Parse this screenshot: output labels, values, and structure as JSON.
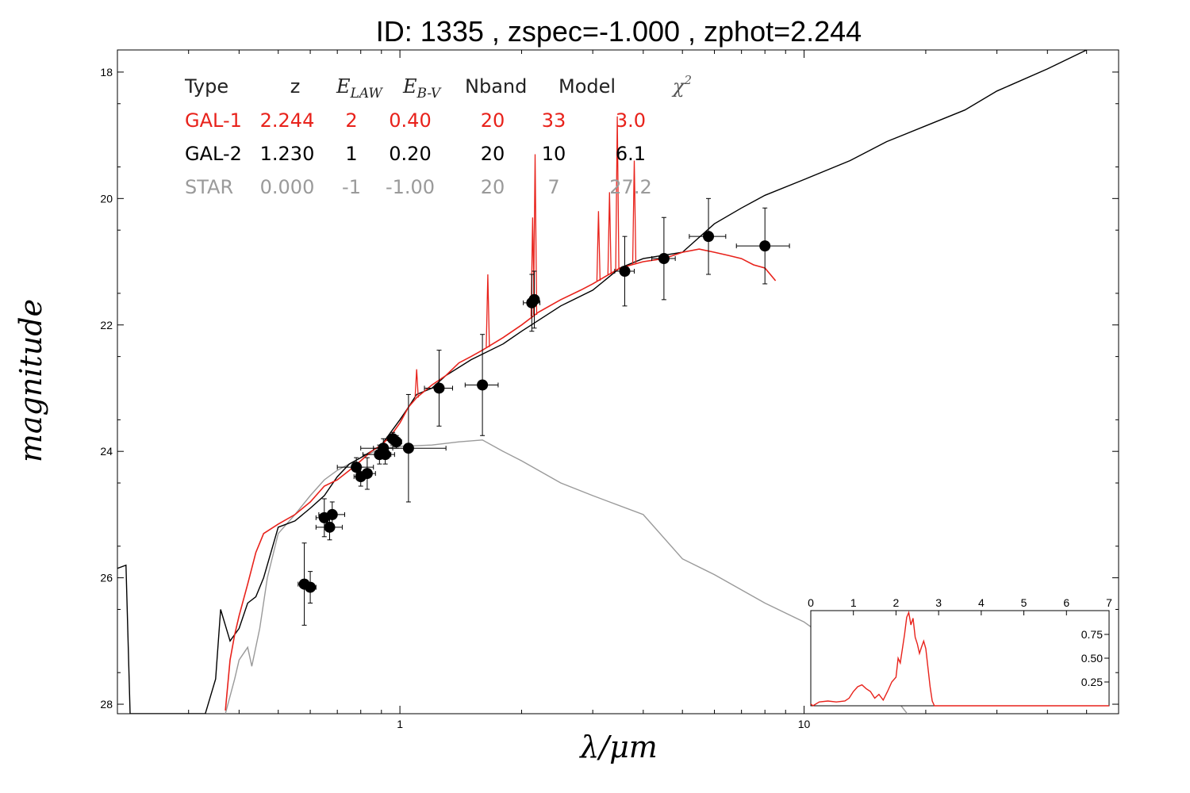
{
  "title": "ID:  1335  , zspec=-1.000 , zphot=2.244",
  "chart_data": [
    {
      "type": "line",
      "xlabel": "λ/μm",
      "ylabel": "magnitude",
      "xscale": "log",
      "xlim": [
        0.2,
        60
      ],
      "ylim": [
        28.15,
        17.65
      ],
      "yaxis_inverted": true,
      "x_ticks": [
        1,
        10
      ],
      "x_tick_labels": [
        "1",
        "10"
      ],
      "y_ticks": [
        18,
        20,
        22,
        24,
        26,
        28
      ],
      "y_tick_labels": [
        "18",
        "20",
        "22",
        "24",
        "26",
        "28"
      ],
      "grid": false,
      "legend": {
        "placement": "top-left",
        "headers": [
          "Type",
          "z",
          "E_LAW",
          "E_B-V",
          "Nband",
          "Model",
          "χ²"
        ],
        "rows": [
          {
            "cells": [
              "GAL-1",
              "2.244",
              "2",
              "0.40",
              "20",
              "33",
              "3.0"
            ],
            "color": "#e8221b"
          },
          {
            "cells": [
              "GAL-2",
              "1.230",
              "1",
              "0.20",
              "20",
              "10",
              "6.1"
            ],
            "color": "#000000"
          },
          {
            "cells": [
              "STAR",
              "0.000",
              "-1",
              "-1.00",
              "20",
              "7",
              "27.2"
            ],
            "color": "#9a9a9a"
          }
        ]
      },
      "series": [
        {
          "name": "GAL-1",
          "color": "#e8221b",
          "points": [
            [
              0.37,
              28.1
            ],
            [
              0.38,
              27.3
            ],
            [
              0.39,
              26.9
            ],
            [
              0.4,
              26.6
            ],
            [
              0.42,
              26.1
            ],
            [
              0.44,
              25.6
            ],
            [
              0.46,
              25.3
            ],
            [
              0.5,
              25.15
            ],
            [
              0.55,
              25.0
            ],
            [
              0.6,
              24.8
            ],
            [
              0.65,
              24.55
            ],
            [
              0.7,
              24.45
            ],
            [
              0.75,
              24.3
            ],
            [
              0.8,
              24.15
            ],
            [
              0.85,
              24.0
            ],
            [
              0.9,
              23.9
            ],
            [
              0.95,
              23.75
            ],
            [
              1.0,
              23.55
            ],
            [
              1.05,
              23.3
            ],
            [
              1.1,
              23.15
            ],
            [
              1.2,
              22.95
            ],
            [
              1.3,
              22.8
            ],
            [
              1.4,
              22.6
            ],
            [
              1.5,
              22.5
            ],
            [
              1.6,
              22.4
            ],
            [
              1.8,
              22.2
            ],
            [
              2.0,
              22.0
            ],
            [
              2.2,
              21.8
            ],
            [
              2.5,
              21.6
            ],
            [
              2.8,
              21.45
            ],
            [
              3.0,
              21.35
            ],
            [
              3.5,
              21.1
            ],
            [
              4.0,
              21.0
            ],
            [
              4.5,
              20.95
            ],
            [
              5.0,
              20.85
            ],
            [
              5.5,
              20.8
            ],
            [
              6.0,
              20.85
            ],
            [
              6.5,
              20.9
            ],
            [
              7.0,
              20.95
            ],
            [
              7.5,
              21.05
            ],
            [
              8.0,
              21.1
            ],
            [
              8.5,
              21.3
            ]
          ]
        },
        {
          "name": "GAL-2",
          "color": "#000000",
          "points": [
            [
              0.2,
              25.85
            ],
            [
              0.21,
              25.8
            ],
            [
              0.215,
              28.15
            ],
            [
              0.33,
              28.15
            ],
            [
              0.35,
              27.6
            ],
            [
              0.36,
              26.5
            ],
            [
              0.38,
              27.0
            ],
            [
              0.4,
              26.8
            ],
            [
              0.42,
              26.4
            ],
            [
              0.44,
              26.3
            ],
            [
              0.46,
              26.0
            ],
            [
              0.5,
              25.2
            ],
            [
              0.55,
              25.1
            ],
            [
              0.6,
              24.9
            ],
            [
              0.65,
              24.7
            ],
            [
              0.7,
              24.4
            ],
            [
              0.75,
              24.2
            ],
            [
              0.8,
              24.1
            ],
            [
              0.9,
              23.9
            ],
            [
              1.0,
              23.5
            ],
            [
              1.05,
              23.3
            ],
            [
              1.1,
              23.1
            ],
            [
              1.2,
              23.0
            ],
            [
              1.3,
              22.8
            ],
            [
              1.5,
              22.55
            ],
            [
              1.8,
              22.3
            ],
            [
              2.0,
              22.1
            ],
            [
              2.5,
              21.7
            ],
            [
              3.0,
              21.45
            ],
            [
              3.5,
              21.1
            ],
            [
              4.0,
              20.95
            ],
            [
              5.0,
              20.85
            ],
            [
              6.0,
              20.4
            ],
            [
              7.0,
              20.15
            ],
            [
              8.0,
              19.95
            ],
            [
              10.0,
              19.7
            ],
            [
              13.0,
              19.4
            ],
            [
              16.0,
              19.1
            ],
            [
              20.0,
              18.85
            ],
            [
              25.0,
              18.6
            ],
            [
              30.0,
              18.3
            ],
            [
              40.0,
              17.95
            ],
            [
              50.0,
              17.65
            ]
          ]
        },
        {
          "name": "STAR",
          "color": "#9a9a9a",
          "points": [
            [
              0.37,
              28.15
            ],
            [
              0.39,
              27.6
            ],
            [
              0.4,
              27.3
            ],
            [
              0.42,
              27.1
            ],
            [
              0.43,
              27.4
            ],
            [
              0.45,
              26.8
            ],
            [
              0.47,
              26.0
            ],
            [
              0.5,
              25.3
            ],
            [
              0.55,
              25.0
            ],
            [
              0.6,
              24.7
            ],
            [
              0.65,
              24.45
            ],
            [
              0.7,
              24.3
            ],
            [
              0.8,
              24.1
            ],
            [
              0.9,
              23.95
            ],
            [
              1.0,
              23.92
            ],
            [
              1.2,
              23.9
            ],
            [
              1.4,
              23.85
            ],
            [
              1.6,
              23.82
            ],
            [
              1.8,
              24.0
            ],
            [
              2.0,
              24.15
            ],
            [
              2.5,
              24.5
            ],
            [
              3.0,
              24.7
            ],
            [
              4.0,
              25.0
            ],
            [
              5.0,
              25.7
            ],
            [
              6.0,
              25.95
            ],
            [
              8.0,
              26.4
            ],
            [
              10.0,
              26.7
            ],
            [
              15.0,
              27.5
            ],
            [
              18.0,
              28.15
            ]
          ]
        }
      ],
      "emission_lines": [
        {
          "x": 1.1,
          "peak": 22.7
        },
        {
          "x": 1.65,
          "peak": 21.2
        },
        {
          "x": 2.13,
          "peak": 20.3
        },
        {
          "x": 2.16,
          "peak": 19.3
        },
        {
          "x": 3.1,
          "peak": 20.2
        },
        {
          "x": 3.3,
          "peak": 19.9
        },
        {
          "x": 3.45,
          "peak": 18.7
        },
        {
          "x": 3.8,
          "peak": 19.4
        }
      ],
      "photometry": [
        {
          "x": 0.58,
          "y": 26.1,
          "xerr": 0.02,
          "yerr": 0.65
        },
        {
          "x": 0.6,
          "y": 26.15,
          "xerr": 0.02,
          "yerr": 0.25
        },
        {
          "x": 0.65,
          "y": 25.05,
          "xerr": 0.03,
          "yerr": 0.3
        },
        {
          "x": 0.68,
          "y": 25.0,
          "xerr": 0.05,
          "yerr": 0.2
        },
        {
          "x": 0.67,
          "y": 25.2,
          "xerr": 0.05,
          "yerr": 0.2
        },
        {
          "x": 0.78,
          "y": 24.25,
          "xerr": 0.08,
          "yerr": 0.15
        },
        {
          "x": 0.8,
          "y": 24.4,
          "xerr": 0.03,
          "yerr": 0.15
        },
        {
          "x": 0.83,
          "y": 24.35,
          "xerr": 0.04,
          "yerr": 0.25
        },
        {
          "x": 0.89,
          "y": 24.05,
          "xerr": 0.08,
          "yerr": 0.15
        },
        {
          "x": 0.91,
          "y": 23.95,
          "xerr": 0.05,
          "yerr": 0.15
        },
        {
          "x": 0.96,
          "y": 23.8,
          "xerr": 0.03,
          "yerr": 0.1
        },
        {
          "x": 0.98,
          "y": 23.85,
          "xerr": 0.03,
          "yerr": 0.1
        },
        {
          "x": 0.92,
          "y": 24.05,
          "xerr": 0.03,
          "yerr": 0.15
        },
        {
          "x": 1.05,
          "y": 23.95,
          "xerr": 0.25,
          "yerr": 0.85
        },
        {
          "x": 1.25,
          "y": 23.0,
          "xerr": 0.1,
          "yerr": 0.6
        },
        {
          "x": 1.6,
          "y": 22.95,
          "xerr": 0.15,
          "yerr": 0.8
        },
        {
          "x": 2.12,
          "y": 21.65,
          "xerr": 0.1,
          "yerr": 0.45
        },
        {
          "x": 2.15,
          "y": 21.6,
          "xerr": 0.05,
          "yerr": 0.45
        },
        {
          "x": 3.6,
          "y": 21.15,
          "xerr": 0.2,
          "yerr": 0.55
        },
        {
          "x": 4.5,
          "y": 20.95,
          "xerr": 0.3,
          "yerr": 0.65
        },
        {
          "x": 5.8,
          "y": 20.6,
          "xerr": 0.6,
          "yerr": 0.6
        },
        {
          "x": 8.0,
          "y": 20.75,
          "xerr": 1.2,
          "yerr": 0.6
        }
      ]
    },
    {
      "type": "line",
      "xlim": [
        0,
        7
      ],
      "ylim": [
        0,
        1
      ],
      "x_ticks": [
        0,
        1,
        2,
        3,
        4,
        5,
        6,
        7
      ],
      "x_tick_labels": [
        "0",
        "1",
        "2",
        "3",
        "4",
        "5",
        "6",
        "7"
      ],
      "y_ticks": [
        0.25,
        0.5,
        0.75
      ],
      "y_tick_labels": [
        "0.25",
        "0.50",
        "0.75"
      ],
      "x_axis_position": "top",
      "y_axis_position": "right",
      "series": [
        {
          "color": "#e8221b",
          "points": [
            [
              0.0,
              0.02
            ],
            [
              0.05,
              0.0
            ],
            [
              0.2,
              0.04
            ],
            [
              0.4,
              0.05
            ],
            [
              0.6,
              0.04
            ],
            [
              0.8,
              0.05
            ],
            [
              0.9,
              0.08
            ],
            [
              1.0,
              0.15
            ],
            [
              1.1,
              0.2
            ],
            [
              1.2,
              0.22
            ],
            [
              1.3,
              0.18
            ],
            [
              1.4,
              0.15
            ],
            [
              1.5,
              0.08
            ],
            [
              1.6,
              0.12
            ],
            [
              1.7,
              0.06
            ],
            [
              1.8,
              0.15
            ],
            [
              1.9,
              0.25
            ],
            [
              2.0,
              0.3
            ],
            [
              2.05,
              0.5
            ],
            [
              2.1,
              0.45
            ],
            [
              2.15,
              0.6
            ],
            [
              2.2,
              0.75
            ],
            [
              2.25,
              0.93
            ],
            [
              2.3,
              0.98
            ],
            [
              2.35,
              0.85
            ],
            [
              2.4,
              0.92
            ],
            [
              2.45,
              0.72
            ],
            [
              2.5,
              0.65
            ],
            [
              2.55,
              0.55
            ],
            [
              2.6,
              0.62
            ],
            [
              2.65,
              0.68
            ],
            [
              2.7,
              0.6
            ],
            [
              2.75,
              0.4
            ],
            [
              2.8,
              0.2
            ],
            [
              2.85,
              0.05
            ],
            [
              2.9,
              0.0
            ],
            [
              7.0,
              0.0
            ]
          ]
        }
      ]
    }
  ]
}
